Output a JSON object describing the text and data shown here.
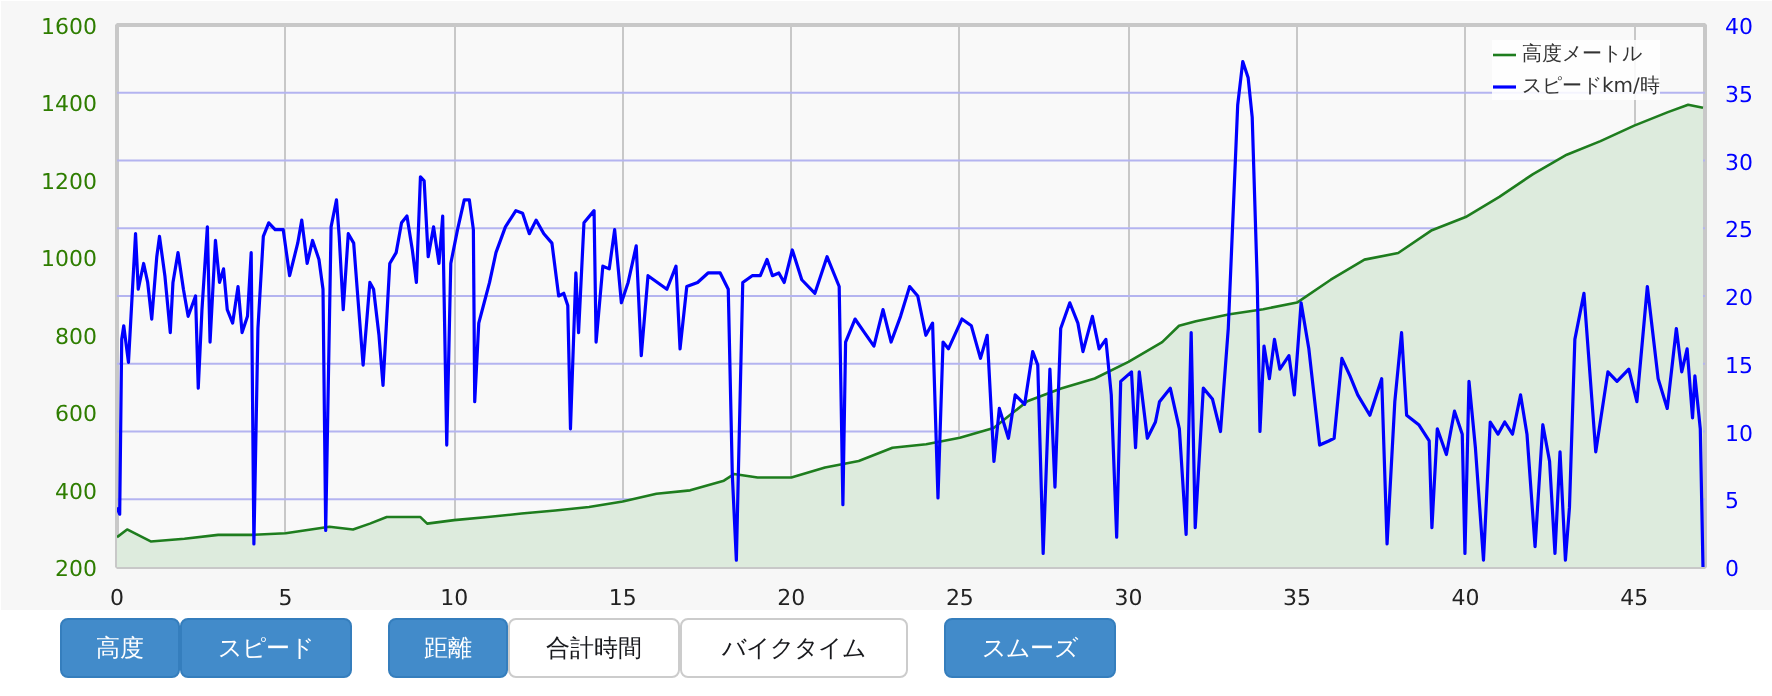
{
  "chart_data": {
    "type": "line",
    "series": [
      {
        "name": "高度メートル",
        "type": "area",
        "color": "#1e7d1e",
        "x": [
          0,
          0.3,
          1,
          2,
          3,
          4,
          5,
          6.3,
          7,
          7.5,
          8,
          9,
          9.2,
          10,
          11,
          12,
          13,
          14,
          15,
          16,
          17,
          18,
          18.3,
          19,
          20,
          21,
          22,
          23,
          24,
          25,
          26,
          27,
          28,
          29,
          30,
          31,
          31.5,
          32,
          33,
          34,
          35,
          36,
          37,
          38,
          39,
          40,
          41,
          42,
          42.5,
          43,
          44,
          45,
          46,
          46.6,
          46.82,
          47.04
        ],
        "values": [
          277,
          297,
          266,
          273,
          283,
          283,
          287,
          304,
          297,
          312,
          329,
          329,
          312,
          321,
          329,
          338,
          346,
          355,
          369,
          389,
          398,
          423,
          440,
          431,
          431,
          457,
          474,
          508,
          517,
          534,
          559,
          628,
          661,
          687,
          730,
          781,
          823,
          835,
          853,
          866,
          883,
          942,
          994,
          1011,
          1070,
          1104,
          1156,
          1215,
          1240,
          1265,
          1300,
          1340,
          1375,
          1394,
          1390,
          1386
        ]
      },
      {
        "name": "スピードkm/時",
        "axis": "y2",
        "color": "#0000ff",
        "x": [
          0,
          0.08,
          0.14,
          0.2,
          0.34,
          0.55,
          0.63,
          0.79,
          0.91,
          1.03,
          1.18,
          1.26,
          1.42,
          1.58,
          1.66,
          1.81,
          1.97,
          2.11,
          2.33,
          2.41,
          2.52,
          2.68,
          2.76,
          2.92,
          3.04,
          3.16,
          3.27,
          3.43,
          3.59,
          3.71,
          3.87,
          3.98,
          4.06,
          4.18,
          4.34,
          4.5,
          4.69,
          4.93,
          5.12,
          5.36,
          5.48,
          5.64,
          5.8,
          5.99,
          6.11,
          6.19,
          6.35,
          6.51,
          6.59,
          6.71,
          6.86,
          7.02,
          7.14,
          7.3,
          7.5,
          7.61,
          7.77,
          7.89,
          8.09,
          8.28,
          8.44,
          8.6,
          8.76,
          8.88,
          9,
          9.11,
          9.23,
          9.39,
          9.55,
          9.66,
          9.78,
          9.9,
          10.1,
          10.3,
          10.45,
          10.57,
          10.61,
          10.73,
          10.89,
          11.05,
          11.24,
          11.52,
          11.83,
          12.03,
          12.23,
          12.43,
          12.66,
          12.9,
          13.1,
          13.25,
          13.37,
          13.45,
          13.61,
          13.69,
          13.85,
          14.15,
          14.21,
          14.41,
          14.6,
          14.76,
          14.96,
          15.16,
          15.4,
          15.55,
          15.75,
          16.03,
          16.31,
          16.58,
          16.7,
          16.9,
          17.22,
          17.53,
          17.89,
          18.13,
          18.25,
          18.37,
          18.56,
          18.84,
          19.08,
          19.28,
          19.44,
          19.63,
          19.79,
          20.03,
          20.31,
          20.7,
          21.06,
          21.42,
          21.53,
          21.61,
          21.89,
          22.17,
          22.45,
          22.72,
          22.96,
          23.24,
          23.51,
          23.75,
          23.99,
          24.19,
          24.35,
          24.5,
          24.66,
          25.06,
          25.34,
          25.61,
          25.81,
          26.01,
          26.17,
          26.44,
          26.64,
          26.92,
          27.16,
          27.31,
          27.47,
          27.67,
          27.82,
          27.99,
          28.26,
          28.5,
          28.65,
          28.93,
          29.13,
          29.33,
          29.49,
          29.65,
          29.77,
          30.09,
          30.21,
          30.32,
          30.56,
          30.8,
          30.92,
          31.24,
          31.51,
          31.71,
          31.86,
          31.98,
          32.22,
          32.49,
          32.73,
          32.96,
          33.24,
          33.39,
          33.55,
          33.67,
          33.82,
          33.9,
          34.02,
          34.18,
          34.33,
          34.49,
          34.76,
          34.92,
          35.12,
          35.35,
          35.67,
          35.94,
          36.1,
          36.33,
          36.57,
          36.8,
          37.16,
          37.51,
          37.67,
          37.9,
          38.1,
          38.25,
          38.61,
          38.92,
          39,
          39.16,
          39.43,
          39.67,
          39.9,
          39.98,
          40.1,
          40.29,
          40.53,
          40.73,
          40.96,
          41.16,
          41.39,
          41.63,
          41.82,
          42.06,
          42.29,
          42.49,
          42.65,
          42.8,
          42.96,
          43.08,
          43.24,
          43.51,
          43.86,
          44.22,
          44.49,
          44.84,
          45.08,
          45.39,
          45.71,
          45.98,
          46.25,
          46.41,
          46.57,
          46.73,
          46.8,
          46.96,
          47.04
        ],
        "values": [
          4.4,
          3.9,
          16.8,
          17.8,
          15.1,
          24.6,
          20.5,
          22.4,
          21,
          18.3,
          22.9,
          24.4,
          21.5,
          17.3,
          21,
          23.2,
          20.5,
          18.5,
          20,
          13.2,
          19,
          25.1,
          16.6,
          24.1,
          21,
          22,
          19,
          18,
          20.7,
          17.3,
          18.5,
          23.2,
          1.7,
          17.6,
          24.4,
          25.4,
          24.9,
          24.9,
          21.5,
          23.9,
          25.6,
          22.4,
          24.1,
          22.7,
          20.5,
          2.7,
          25.1,
          27.1,
          24.4,
          19,
          24.6,
          23.9,
          20,
          14.9,
          21,
          20.5,
          17.1,
          13.4,
          22.4,
          23.2,
          25.4,
          25.9,
          23.4,
          21,
          28.8,
          28.5,
          22.9,
          25.1,
          22.4,
          25.9,
          9,
          22.4,
          24.9,
          27.1,
          27.1,
          24.9,
          12.2,
          18,
          19.5,
          21,
          23.2,
          25.1,
          26.3,
          26.1,
          24.6,
          25.6,
          24.6,
          23.9,
          20,
          20.2,
          19.3,
          10.2,
          21.7,
          17.3,
          25.4,
          26.3,
          16.6,
          22.2,
          22,
          24.9,
          19.5,
          21,
          23.7,
          15.6,
          21.5,
          21,
          20.5,
          22.2,
          16.1,
          20.7,
          21,
          21.7,
          21.7,
          20.5,
          6.8,
          0.5,
          21,
          21.5,
          21.5,
          22.7,
          21.5,
          21.7,
          21,
          23.4,
          21.2,
          20.2,
          22.9,
          20.7,
          4.6,
          16.6,
          18.3,
          17.3,
          16.3,
          19,
          16.6,
          18.5,
          20.7,
          20,
          17.1,
          18,
          5.1,
          16.6,
          16.1,
          18.3,
          17.8,
          15.4,
          17.1,
          7.8,
          11.7,
          9.5,
          12.7,
          12,
          15.9,
          14.9,
          1,
          14.6,
          5.9,
          17.6,
          19.5,
          18,
          15.9,
          18.5,
          16.1,
          16.8,
          12.7,
          2.2,
          13.7,
          14.4,
          8.8,
          14.4,
          9.5,
          10.7,
          12.2,
          13.2,
          10.2,
          2.4,
          17.3,
          2.9,
          13.2,
          12.4,
          10,
          17.6,
          34.1,
          37.3,
          36.1,
          33.2,
          21,
          10,
          16.3,
          13.9,
          16.8,
          14.6,
          15.6,
          12.7,
          19.5,
          16.1,
          9,
          9.3,
          9.5,
          15.4,
          14.1,
          12.7,
          11.2,
          13.9,
          1.7,
          12.2,
          17.3,
          11.2,
          10.5,
          9.3,
          2.9,
          10.2,
          8.3,
          11.5,
          9.8,
          1,
          13.7,
          8.8,
          0.5,
          10.7,
          9.8,
          10.7,
          9.8,
          12.7,
          9.8,
          1.5,
          10.5,
          7.8,
          1,
          8.5,
          0.5,
          4.4,
          16.8,
          20.2,
          8.5,
          14.4,
          13.7,
          14.6,
          12.2,
          20.7,
          13.9,
          11.7,
          17.6,
          14.4,
          16.1,
          11,
          14.1,
          10.2,
          0
        ]
      }
    ],
    "xlim": [
      0,
      47.1
    ],
    "xticks": [
      0,
      5,
      10,
      15,
      20,
      25,
      30,
      35,
      40,
      45
    ],
    "ylim": [
      200,
      1600
    ],
    "yticks": [
      200,
      400,
      600,
      800,
      1000,
      1200,
      1400,
      1600
    ],
    "y2lim": [
      0,
      40
    ],
    "y2ticks": [
      0,
      5,
      10,
      15,
      20,
      25,
      30,
      35,
      40
    ],
    "grid": true,
    "legend": "top right",
    "annotations": [
      "高度",
      "スピード",
      "距離",
      "合計時間",
      "バイクタイム",
      "スムーズ"
    ]
  }
}
